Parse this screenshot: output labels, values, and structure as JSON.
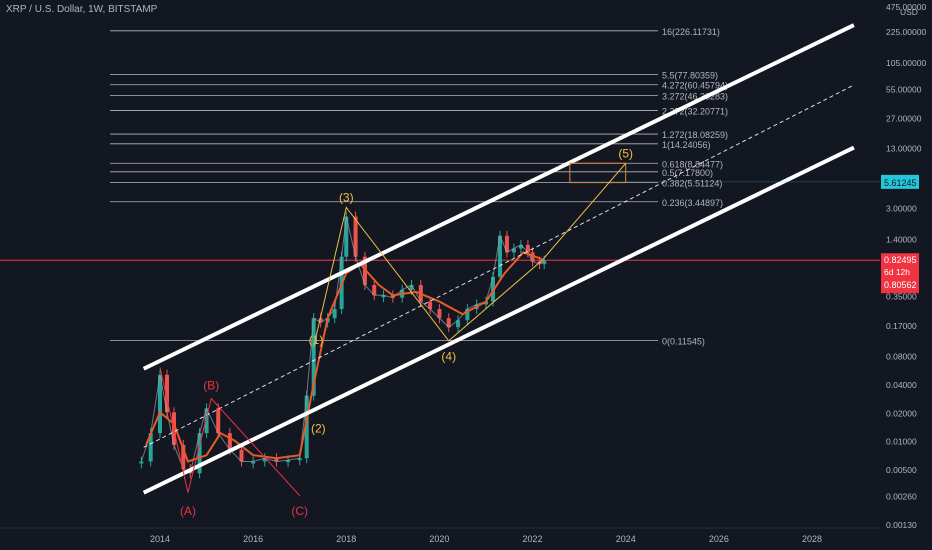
{
  "header": {
    "symbol": "XRP / U.S. Dollar, 1W, BITSTAMP"
  },
  "colors": {
    "background": "#131722",
    "text": "#b2b5be",
    "fib_line": "#d1d4dc",
    "channel": "#ffffff",
    "wave_gold": "#f0c040",
    "wave_red": "#ef3340",
    "ma_line": "#e85a2a",
    "candle_up": "#26a69a",
    "candle_down": "#ef5350",
    "current_price": "#ef3340",
    "target_badge": "#26c6da"
  },
  "chart_data": {
    "type": "candlestick",
    "title": "XRP / U.S. Dollar, 1W, BITSTAMP",
    "xlabel": "",
    "ylabel": "",
    "x_range": [
      2013.0,
      2029.0
    ],
    "y_range": [
      0.0013,
      475.0
    ],
    "y_scale": "log",
    "y_unit": "USD",
    "x_ticks": [
      "2014",
      "2016",
      "2018",
      "2020",
      "2022",
      "2024",
      "2026",
      "2028"
    ],
    "y_ticks": [
      {
        "label": "475.00000",
        "value": 475
      },
      {
        "label": "225.00000",
        "value": 225
      },
      {
        "label": "105.00000",
        "value": 105
      },
      {
        "label": "55.00000",
        "value": 55
      },
      {
        "label": "27.00000",
        "value": 27
      },
      {
        "label": "13.00000",
        "value": 13
      },
      {
        "label": "3.00000",
        "value": 3
      },
      {
        "label": "1.40000",
        "value": 1.4
      },
      {
        "label": "0.35000",
        "value": 0.35
      },
      {
        "label": "0.17000",
        "value": 0.17
      },
      {
        "label": "0.08000",
        "value": 0.08
      },
      {
        "label": "0.04000",
        "value": 0.04
      },
      {
        "label": "0.02000",
        "value": 0.02
      },
      {
        "label": "0.01000",
        "value": 0.01
      },
      {
        "label": "0.00500",
        "value": 0.005
      },
      {
        "label": "0.00260",
        "value": 0.0026
      },
      {
        "label": "0.00130",
        "value": 0.0013
      }
    ],
    "price_badges": [
      {
        "label": "5.61245",
        "value": 5.61245,
        "color": "#26c6da"
      },
      {
        "label": "0.82495",
        "value": 0.82495,
        "color": "#ef3340"
      },
      {
        "label": "6d 12h",
        "value": 0.6,
        "color": "#ef3340"
      },
      {
        "label": "0.80562",
        "value": 0.4,
        "color": "#ef3340"
      }
    ],
    "fib_levels": [
      {
        "label": "16(226.11731)",
        "value": 226.11731
      },
      {
        "label": "5.5(77.80359)",
        "value": 77.80359
      },
      {
        "label": "4.272(60.45794)",
        "value": 60.45794
      },
      {
        "label": "3.272(46.33283)",
        "value": 46.33283
      },
      {
        "label": "2.272(32.20771)",
        "value": 32.20771
      },
      {
        "label": "1.272(18.08259)",
        "value": 18.08259
      },
      {
        "label": "1(14.24056)",
        "value": 14.24056
      },
      {
        "label": "0.618(8.84477)",
        "value": 8.84477
      },
      {
        "label": "0.5(7.17800)",
        "value": 7.178
      },
      {
        "label": "0.382(5.51124)",
        "value": 5.51124
      },
      {
        "label": "0.236(3.44897)",
        "value": 3.44897
      },
      {
        "label": "0(0.11545)",
        "value": 0.11545
      }
    ],
    "fib_x_range": [
      2017.05,
      2022.5
    ],
    "channel_lines": [
      {
        "name": "upper",
        "x": [
          2013.65,
          2028.9
        ],
        "y": [
          0.058,
          260
        ]
      },
      {
        "name": "middle",
        "x": [
          2013.65,
          2028.9
        ],
        "y": [
          0.0085,
          60
        ],
        "dashed": true
      },
      {
        "name": "lower",
        "x": [
          2013.65,
          2028.9
        ],
        "y": [
          0.0028,
          13
        ]
      }
    ],
    "target_box": {
      "x": [
        2022.8,
        2024.0
      ],
      "y": [
        5.51124,
        8.84477
      ]
    },
    "current_price": 0.82495,
    "wave_labels": [
      {
        "label": "(3)",
        "x": 2018.0,
        "y": 3.0,
        "color": "#f0c040"
      },
      {
        "label": "(5)",
        "x": 2024.0,
        "y": 8.84,
        "color": "#f0c040"
      },
      {
        "label": "(1)",
        "x": 2017.35,
        "y": 0.092,
        "color": "#f0c040"
      },
      {
        "label": "(4)",
        "x": 2020.2,
        "y": 0.105,
        "color": "#f0c040"
      },
      {
        "label": "(2)",
        "x": 2017.4,
        "y": 0.018,
        "color": "#f0c040"
      },
      {
        "label": "(B)",
        "x": 2015.1,
        "y": 0.03,
        "color": "#ef3340"
      },
      {
        "label": "(A)",
        "x": 2014.6,
        "y": 0.0024,
        "color": "#ef3340"
      },
      {
        "label": "(C)",
        "x": 2017.0,
        "y": 0.0024,
        "color": "#ef3340"
      }
    ],
    "wave_paths": [
      {
        "name": "impulse",
        "color": "#f0c040",
        "x": [
          2017.3,
          2018.0,
          2020.2,
          2022.2,
          2024.0
        ],
        "y": [
          0.1,
          3.0,
          0.115,
          0.82,
          8.84
        ]
      },
      {
        "name": "correction",
        "color": "#ef3340",
        "x": [
          2014.0,
          2014.6,
          2015.1,
          2017.0
        ],
        "y": [
          0.06,
          0.0028,
          0.028,
          0.0026
        ]
      }
    ],
    "series": [
      {
        "name": "XRPUSD",
        "x": [
          2013.6,
          2013.8,
          2014.0,
          2014.15,
          2014.3,
          2014.5,
          2014.65,
          2014.85,
          2015.0,
          2015.25,
          2015.5,
          2015.75,
          2016.0,
          2016.25,
          2016.5,
          2016.75,
          2017.0,
          2017.15,
          2017.3,
          2017.45,
          2017.6,
          2017.75,
          2017.9,
          2018.0,
          2018.2,
          2018.4,
          2018.6,
          2018.8,
          2019.0,
          2019.2,
          2019.4,
          2019.6,
          2019.8,
          2020.0,
          2020.2,
          2020.4,
          2020.6,
          2020.8,
          2021.0,
          2021.15,
          2021.3,
          2021.45,
          2021.6,
          2021.75,
          2021.9,
          2022.0,
          2022.15,
          2022.25
        ],
        "y": [
          0.006,
          0.012,
          0.05,
          0.02,
          0.009,
          0.005,
          0.0045,
          0.012,
          0.022,
          0.012,
          0.008,
          0.006,
          0.006,
          0.0065,
          0.006,
          0.0062,
          0.0065,
          0.03,
          0.2,
          0.18,
          0.2,
          0.25,
          0.9,
          2.4,
          0.9,
          0.45,
          0.35,
          0.35,
          0.33,
          0.4,
          0.45,
          0.3,
          0.25,
          0.2,
          0.16,
          0.19,
          0.25,
          0.28,
          0.3,
          0.55,
          1.5,
          1.0,
          1.1,
          1.2,
          1.0,
          0.8,
          0.75,
          0.82
        ]
      },
      {
        "name": "MA",
        "x": [
          2013.7,
          2014.0,
          2014.3,
          2014.6,
          2015.0,
          2015.3,
          2015.6,
          2016.0,
          2016.5,
          2017.0,
          2017.3,
          2017.6,
          2018.0,
          2018.3,
          2018.7,
          2019.0,
          2019.5,
          2020.0,
          2020.5,
          2021.0,
          2021.4,
          2021.8,
          2022.2
        ],
        "y": [
          0.009,
          0.02,
          0.015,
          0.006,
          0.007,
          0.012,
          0.01,
          0.007,
          0.0065,
          0.007,
          0.04,
          0.2,
          0.6,
          0.75,
          0.45,
          0.35,
          0.38,
          0.3,
          0.22,
          0.3,
          0.6,
          1.0,
          0.85
        ]
      }
    ]
  }
}
